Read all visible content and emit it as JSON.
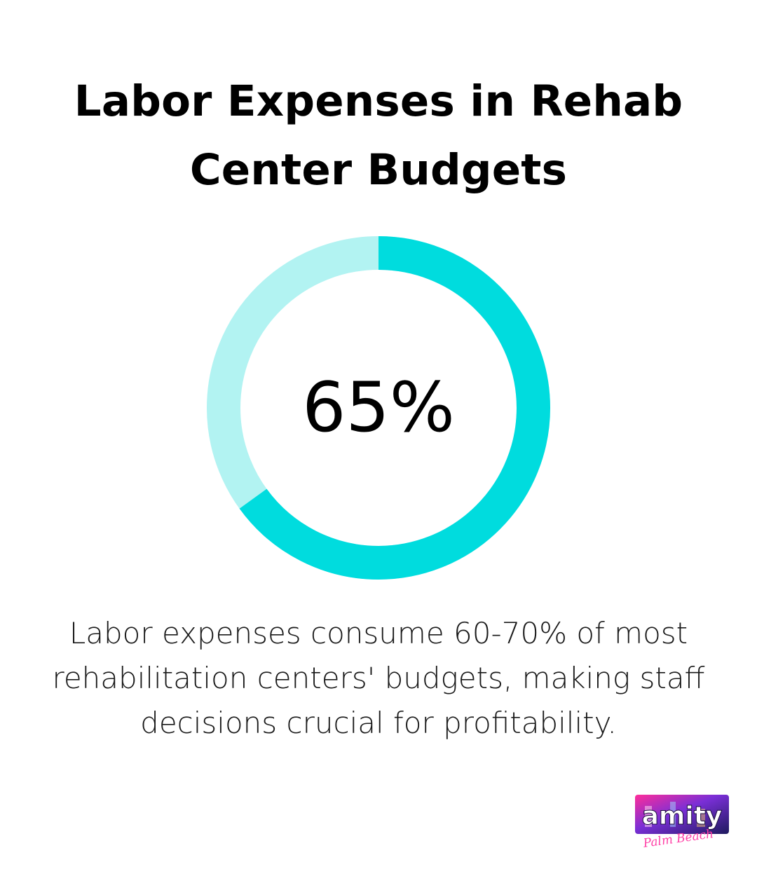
{
  "title": {
    "line1": "Labor Expenses in Rehab",
    "line2": "Center Budgets"
  },
  "chart_data": {
    "type": "donut",
    "value_percent": 65,
    "remaining_percent": 35,
    "center_label": "65%",
    "colors": {
      "value": "#00DCDE",
      "remaining": "#B2F3F2"
    }
  },
  "description": {
    "line1": "Labor expenses consume 60-70% of most",
    "line2": "rehabilitation centers' budgets, making staff",
    "line3": "decisions crucial for profitability."
  },
  "logo": {
    "wordmark": "amity",
    "script": "Palm Beach"
  }
}
